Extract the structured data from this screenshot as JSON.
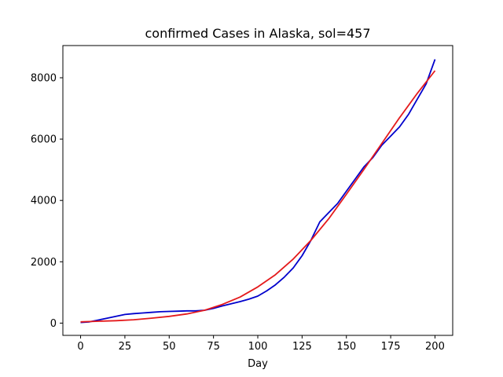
{
  "chart_data": {
    "type": "line",
    "title": "confirmed Cases in Alaska, sol=457",
    "xlabel": "Day",
    "ylabel": "",
    "xlim": [
      -10,
      210
    ],
    "ylim": [
      -400,
      9050
    ],
    "xticks": [
      0,
      25,
      50,
      75,
      100,
      125,
      150,
      175,
      200
    ],
    "yticks": [
      0,
      2000,
      4000,
      6000,
      8000
    ],
    "grid": false,
    "legend": "none",
    "series": [
      {
        "color": "#0000cc",
        "x": [
          0,
          5,
          10,
          15,
          20,
          25,
          30,
          35,
          40,
          45,
          50,
          55,
          60,
          65,
          70,
          75,
          80,
          85,
          90,
          95,
          100,
          105,
          110,
          115,
          120,
          125,
          130,
          135,
          140,
          145,
          150,
          155,
          160,
          165,
          170,
          175,
          180,
          185,
          190,
          195,
          200
        ],
        "y": [
          20,
          40,
          100,
          160,
          220,
          280,
          310,
          330,
          350,
          370,
          380,
          390,
          400,
          400,
          420,
          480,
          560,
          630,
          700,
          780,
          880,
          1050,
          1250,
          1500,
          1800,
          2200,
          2700,
          3300,
          3600,
          3900,
          4300,
          4700,
          5100,
          5400,
          5800,
          6100,
          6400,
          6800,
          7300,
          7800,
          8600
        ]
      },
      {
        "color": "#e41a1c",
        "x": [
          0,
          10,
          20,
          30,
          40,
          50,
          60,
          70,
          80,
          90,
          100,
          110,
          120,
          130,
          140,
          150,
          160,
          170,
          180,
          190,
          200
        ],
        "y": [
          40,
          60,
          80,
          110,
          160,
          220,
          300,
          420,
          610,
          850,
          1180,
          1580,
          2090,
          2700,
          3400,
          4200,
          5020,
          5860,
          6700,
          7490,
          8230
        ]
      }
    ]
  }
}
